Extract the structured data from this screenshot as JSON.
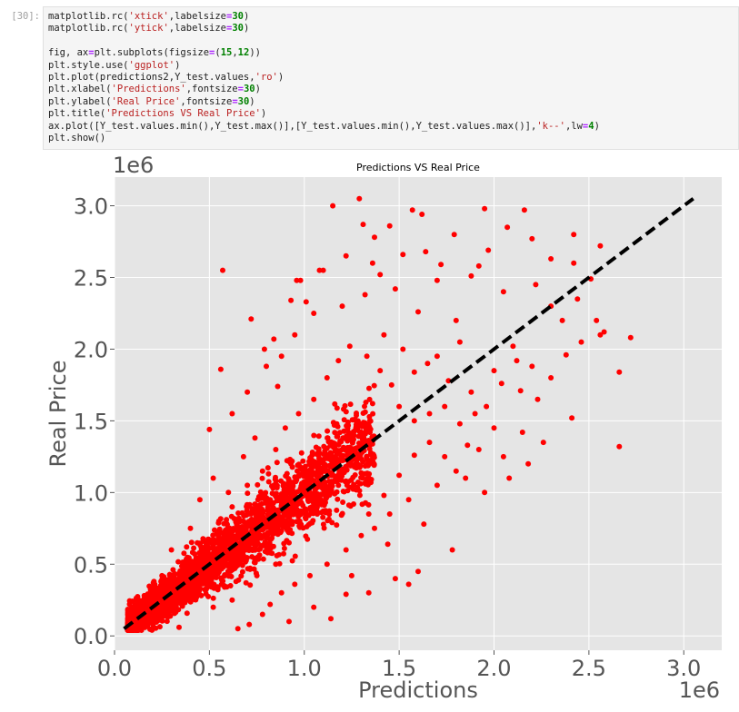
{
  "cell": {
    "prompt": "[30]:",
    "code_lines": [
      [
        {
          "t": "matplotlib.rc("
        },
        {
          "t": "'xtick'",
          "c": "str"
        },
        {
          "t": ",labelsize"
        },
        {
          "t": "=",
          "c": "kw"
        },
        {
          "t": "30",
          "c": "num"
        },
        {
          "t": ")"
        }
      ],
      [
        {
          "t": "matplotlib.rc("
        },
        {
          "t": "'ytick'",
          "c": "str"
        },
        {
          "t": ",labelsize"
        },
        {
          "t": "=",
          "c": "kw"
        },
        {
          "t": "30",
          "c": "num"
        },
        {
          "t": ")"
        }
      ],
      [],
      [
        {
          "t": "fig, ax"
        },
        {
          "t": "=",
          "c": "kw"
        },
        {
          "t": "plt.subplots(figsize"
        },
        {
          "t": "=",
          "c": "kw"
        },
        {
          "t": "("
        },
        {
          "t": "15",
          "c": "num"
        },
        {
          "t": ","
        },
        {
          "t": "12",
          "c": "num"
        },
        {
          "t": "))"
        }
      ],
      [
        {
          "t": "plt.style.use("
        },
        {
          "t": "'ggplot'",
          "c": "str"
        },
        {
          "t": ")"
        }
      ],
      [
        {
          "t": "plt.plot(predictions2,Y_test.values,"
        },
        {
          "t": "'ro'",
          "c": "str"
        },
        {
          "t": ")"
        }
      ],
      [
        {
          "t": "plt.xlabel("
        },
        {
          "t": "'Predictions'",
          "c": "str"
        },
        {
          "t": ",fontsize"
        },
        {
          "t": "=",
          "c": "kw"
        },
        {
          "t": "30",
          "c": "num"
        },
        {
          "t": ")"
        }
      ],
      [
        {
          "t": "plt.ylabel("
        },
        {
          "t": "'Real Price'",
          "c": "str"
        },
        {
          "t": ",fontsize"
        },
        {
          "t": "=",
          "c": "kw"
        },
        {
          "t": "30",
          "c": "num"
        },
        {
          "t": ")"
        }
      ],
      [
        {
          "t": "plt.title("
        },
        {
          "t": "'Predictions VS Real Price'",
          "c": "str"
        },
        {
          "t": ")"
        }
      ],
      [
        {
          "t": "ax.plot([Y_test.values.min(),Y_test.max()],[Y_test.values.min(),Y_test.values.max()],"
        },
        {
          "t": "'k--'",
          "c": "str"
        },
        {
          "t": ",lw"
        },
        {
          "t": "=",
          "c": "kw"
        },
        {
          "t": "4",
          "c": "num"
        },
        {
          "t": ")"
        }
      ],
      [
        {
          "t": "plt.show()"
        }
      ]
    ]
  },
  "chart_data": {
    "type": "scatter",
    "title": "Predictions VS Real Price",
    "xlabel": "Predictions",
    "ylabel": "Real Price",
    "x_offset_text": "1e6",
    "y_offset_text": "1e6",
    "xlim": [
      0.0,
      3.2
    ],
    "ylim": [
      -0.1,
      3.2
    ],
    "xticks": [
      0.0,
      0.5,
      1.0,
      1.5,
      2.0,
      2.5,
      3.0
    ],
    "xtick_labels": [
      "0.0",
      "0.5",
      "1.0",
      "1.5",
      "2.0",
      "2.5",
      "3.0"
    ],
    "yticks": [
      0.0,
      0.5,
      1.0,
      1.5,
      2.0,
      2.5,
      3.0
    ],
    "ytick_labels": [
      "0.0",
      "0.5",
      "1.0",
      "1.5",
      "2.0",
      "2.5",
      "3.0"
    ],
    "grid": true,
    "style": "ggplot",
    "marker_color": "#ff0000",
    "reference_line": {
      "x": [
        0.05,
        3.05
      ],
      "y": [
        0.05,
        3.05
      ],
      "style": "k--"
    },
    "series": [
      {
        "marker": "ro",
        "points": [
          [
            1.29,
            3.05
          ],
          [
            1.15,
            3.0
          ],
          [
            1.57,
            2.97
          ],
          [
            1.62,
            2.94
          ],
          [
            1.95,
            2.98
          ],
          [
            2.16,
            2.97
          ],
          [
            1.31,
            2.87
          ],
          [
            1.45,
            2.86
          ],
          [
            1.37,
            2.78
          ],
          [
            1.79,
            2.8
          ],
          [
            2.07,
            2.85
          ],
          [
            2.2,
            2.77
          ],
          [
            2.42,
            2.8
          ],
          [
            2.56,
            2.72
          ],
          [
            1.97,
            2.69
          ],
          [
            2.3,
            2.63
          ],
          [
            2.42,
            2.6
          ],
          [
            1.22,
            2.65
          ],
          [
            1.64,
            2.68
          ],
          [
            0.98,
            2.48
          ],
          [
            1.1,
            2.55
          ],
          [
            1.4,
            2.52
          ],
          [
            1.72,
            2.59
          ],
          [
            1.88,
            2.51
          ],
          [
            2.05,
            2.4
          ],
          [
            2.22,
            2.45
          ],
          [
            2.51,
            2.49
          ],
          [
            2.54,
            2.2
          ],
          [
            2.46,
            2.05
          ],
          [
            2.58,
            2.12
          ],
          [
            2.66,
            1.84
          ],
          [
            2.66,
            1.32
          ],
          [
            2.56,
            2.1
          ],
          [
            2.72,
            2.08
          ],
          [
            2.04,
            1.76
          ],
          [
            2.14,
            1.71
          ],
          [
            2.41,
            1.52
          ],
          [
            1.86,
            1.33
          ],
          [
            2.05,
            1.25
          ],
          [
            2.15,
            1.42
          ],
          [
            2.23,
            1.65
          ],
          [
            2.3,
            1.8
          ],
          [
            2.38,
            1.96
          ],
          [
            2.1,
            2.02
          ],
          [
            1.8,
            2.2
          ],
          [
            1.6,
            2.26
          ],
          [
            1.48,
            2.42
          ],
          [
            0.72,
            2.21
          ],
          [
            0.84,
            2.07
          ],
          [
            0.93,
            2.34
          ],
          [
            0.56,
            1.86
          ],
          [
            0.5,
            1.44
          ],
          [
            0.62,
            1.55
          ],
          [
            0.7,
            1.7
          ],
          [
            0.8,
            1.88
          ],
          [
            0.88,
            1.95
          ],
          [
            0.95,
            2.1
          ],
          [
            1.05,
            2.25
          ],
          [
            1.2,
            2.3
          ],
          [
            1.32,
            2.38
          ],
          [
            1.42,
            2.1
          ],
          [
            1.52,
            2.0
          ],
          [
            1.65,
            1.9
          ],
          [
            1.76,
            1.78
          ],
          [
            1.88,
            1.7
          ],
          [
            1.96,
            1.6
          ],
          [
            2.0,
            1.45
          ],
          [
            1.92,
            1.3
          ],
          [
            1.8,
            1.15
          ],
          [
            1.7,
            1.05
          ],
          [
            1.55,
            0.95
          ],
          [
            1.45,
            0.85
          ],
          [
            1.37,
            0.75
          ],
          [
            1.3,
            0.7
          ],
          [
            1.22,
            0.6
          ],
          [
            1.12,
            0.5
          ],
          [
            1.03,
            0.42
          ],
          [
            0.95,
            0.36
          ],
          [
            0.88,
            0.3
          ],
          [
            0.82,
            0.22
          ],
          [
            0.78,
            0.15
          ],
          [
            0.71,
            0.08
          ],
          [
            0.65,
            0.05
          ],
          [
            1.14,
            0.12
          ],
          [
            1.25,
            0.42
          ],
          [
            1.48,
            0.4
          ],
          [
            1.55,
            0.36
          ],
          [
            1.44,
            0.64
          ],
          [
            1.63,
            0.78
          ],
          [
            1.78,
            0.6
          ],
          [
            1.6,
            0.45
          ],
          [
            1.34,
            0.3
          ],
          [
            1.22,
            0.29
          ],
          [
            1.05,
            0.2
          ],
          [
            0.92,
            0.1
          ],
          [
            0.52,
            0.2
          ],
          [
            0.34,
            0.06
          ],
          [
            0.45,
            0.4
          ],
          [
            0.4,
            0.75
          ],
          [
            0.3,
            0.6
          ],
          [
            0.25,
            0.42
          ],
          [
            0.6,
            1.0
          ],
          [
            0.68,
            1.25
          ],
          [
            0.74,
            1.38
          ],
          [
            0.52,
            1.1
          ],
          [
            0.45,
            0.95
          ],
          [
            0.38,
            0.62
          ],
          [
            0.28,
            0.35
          ],
          [
            0.2,
            0.28
          ],
          [
            0.14,
            0.2
          ],
          [
            0.11,
            0.12
          ],
          [
            0.08,
            0.07
          ],
          [
            0.1,
            0.04
          ],
          [
            0.16,
            0.09
          ],
          [
            0.22,
            0.14
          ],
          [
            0.32,
            0.22
          ],
          [
            0.42,
            0.3
          ],
          [
            0.58,
            0.34
          ],
          [
            0.62,
            0.25
          ],
          [
            0.75,
            0.42
          ],
          [
            0.85,
            0.5
          ],
          [
            0.92,
            0.65
          ],
          [
            0.98,
            0.85
          ],
          [
            1.06,
            0.95
          ],
          [
            1.12,
            1.15
          ],
          [
            1.2,
            1.3
          ],
          [
            1.28,
            1.45
          ],
          [
            1.36,
            1.62
          ],
          [
            1.46,
            1.75
          ],
          [
            1.58,
            1.84
          ],
          [
            1.7,
            1.95
          ],
          [
            1.82,
            2.05
          ],
          [
            0.55,
            0.8
          ],
          [
            0.62,
            0.9
          ],
          [
            0.7,
            1.05
          ],
          [
            0.78,
            1.15
          ],
          [
            0.85,
            1.3
          ],
          [
            0.9,
            1.45
          ],
          [
            0.97,
            1.55
          ],
          [
            1.05,
            1.65
          ],
          [
            1.12,
            1.8
          ],
          [
            1.18,
            1.92
          ],
          [
            1.24,
            2.02
          ],
          [
            1.33,
            1.95
          ],
          [
            1.4,
            1.85
          ],
          [
            1.5,
            1.6
          ],
          [
            1.58,
            1.5
          ],
          [
            1.66,
            1.35
          ],
          [
            1.74,
            1.25
          ],
          [
            1.85,
            1.1
          ],
          [
            1.95,
            1.0
          ],
          [
            2.08,
            1.1
          ],
          [
            2.18,
            1.2
          ],
          [
            2.26,
            1.35
          ],
          [
            0.26,
            0.18
          ],
          [
            0.36,
            0.46
          ],
          [
            0.48,
            0.55
          ],
          [
            0.58,
            0.66
          ],
          [
            0.66,
            0.72
          ],
          [
            0.72,
            0.85
          ],
          [
            0.82,
            0.95
          ],
          [
            0.94,
            1.05
          ],
          [
            1.02,
            1.12
          ],
          [
            1.1,
            1.22
          ],
          [
            1.18,
            1.05
          ],
          [
            1.26,
            0.92
          ],
          [
            1.34,
            0.85
          ],
          [
            1.42,
            0.98
          ],
          [
            1.5,
            1.12
          ],
          [
            1.58,
            1.26
          ],
          [
            1.66,
            1.55
          ],
          [
            1.74,
            1.6
          ],
          [
            1.82,
            1.48
          ],
          [
            1.9,
            1.55
          ],
          [
            2.0,
            1.85
          ],
          [
            2.12,
            1.92
          ],
          [
            2.2,
            1.88
          ],
          [
            2.3,
            2.3
          ],
          [
            2.36,
            2.2
          ],
          [
            2.44,
            2.35
          ],
          [
            0.57,
            2.55
          ],
          [
            0.79,
            2.0
          ],
          [
            0.86,
            1.74
          ],
          [
            1.01,
            2.33
          ],
          [
            1.08,
            2.55
          ],
          [
            0.96,
            2.48
          ],
          [
            1.36,
            2.6
          ],
          [
            1.52,
            2.66
          ],
          [
            1.7,
            2.48
          ],
          [
            1.92,
            2.58
          ]
        ]
      }
    ]
  }
}
